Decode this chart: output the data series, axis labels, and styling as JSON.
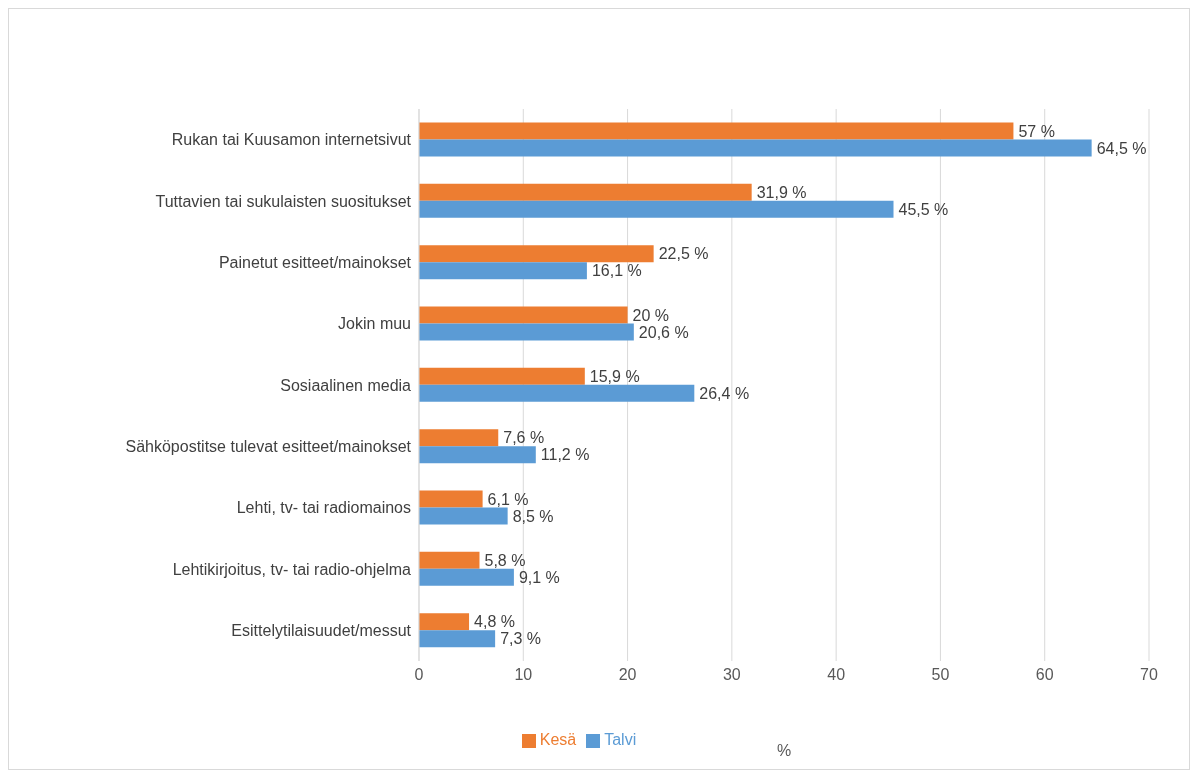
{
  "chart_data": {
    "type": "bar",
    "orientation": "horizontal",
    "xlabel": "%",
    "categories": [
      "Rukan tai Kuusamon internetsivut",
      "Tuttavien tai sukulaisten suositukset",
      "Painetut esitteet/mainokset",
      "Jokin muu",
      "Sosiaalinen media",
      "Sähköpostitse tulevat esitteet/mainokset",
      "Lehti, tv- tai radiomainos",
      "Lehtikirjoitus, tv- tai radio-ohjelma",
      "Esittelytilaisuudet/messut"
    ],
    "series": [
      {
        "name": "Kesä",
        "color": "#ed7d31",
        "values": [
          57,
          31.9,
          22.5,
          20,
          15.9,
          7.6,
          6.1,
          5.8,
          4.8
        ],
        "value_labels": [
          "57 %",
          "31,9 %",
          "22,5 %",
          "20 %",
          "15,9 %",
          "7,6 %",
          "6,1 %",
          "5,8 %",
          "4,8 %"
        ]
      },
      {
        "name": "Talvi",
        "color": "#5b9bd5",
        "values": [
          64.5,
          45.5,
          16.1,
          20.6,
          26.4,
          11.2,
          8.5,
          9.1,
          7.3
        ],
        "value_labels": [
          "64,5 %",
          "45,5 %",
          "16,1 %",
          "20,6 %",
          "26,4 %",
          "11,2 %",
          "8,5 %",
          "9,1 %",
          "7,3 %"
        ]
      }
    ],
    "xlim": [
      0,
      70
    ],
    "xticks": [
      0,
      10,
      20,
      30,
      40,
      50,
      60,
      70
    ],
    "grid": "x",
    "legend": "bottom"
  }
}
